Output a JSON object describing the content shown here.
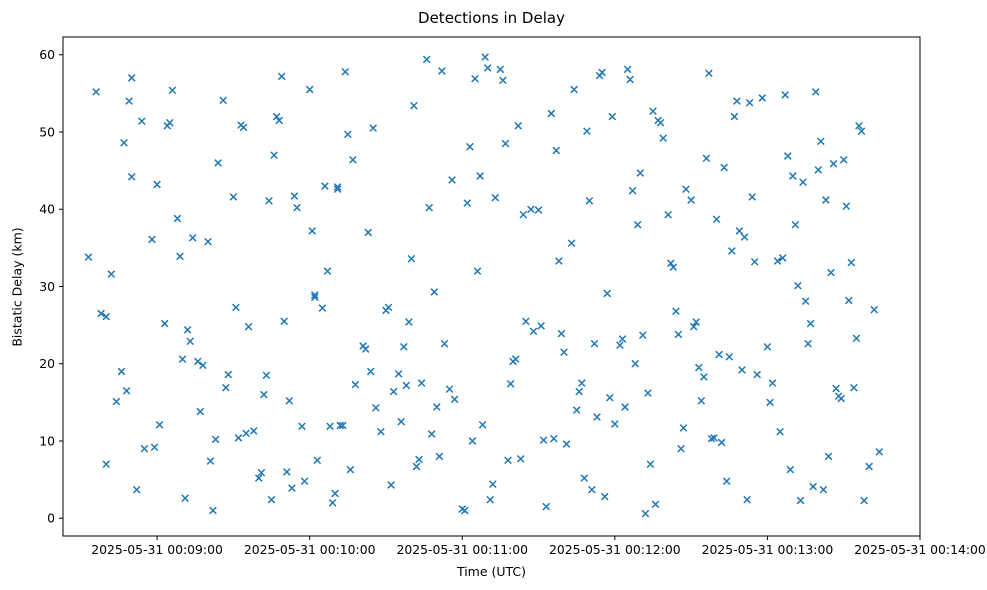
{
  "chart_data": {
    "type": "scatter",
    "title": "Detections in Delay",
    "xlabel": "Time (UTC)",
    "ylabel": "Bistatic Delay (km)",
    "marker": "x",
    "marker_color": "#1f77b4",
    "background_color": "#ffffff",
    "grid": false,
    "x_axis": {
      "type": "time_utc",
      "date": "2025-05-31",
      "min_time": "00:08:23",
      "max_time": "00:14:00",
      "ticks": [
        "00:09:00",
        "00:10:00",
        "00:11:00",
        "00:12:00",
        "00:13:00",
        "00:14:00"
      ],
      "tick_labels": [
        "2025-05-31 00:09:00",
        "2025-05-31 00:10:00",
        "2025-05-31 00:11:00",
        "2025-05-31 00:12:00",
        "2025-05-31 00:13:00",
        "2025-05-31 00:14:00"
      ]
    },
    "y_axis": {
      "min": -2.3,
      "max": 62.3,
      "ticks": [
        0,
        10,
        20,
        30,
        40,
        50,
        60
      ]
    },
    "points": [
      [
        "00:08:33",
        33.8
      ],
      [
        "00:08:36",
        55.2
      ],
      [
        "00:08:38",
        26.5
      ],
      [
        "00:08:40",
        7.0
      ],
      [
        "00:08:40",
        26.1
      ],
      [
        "00:08:42",
        31.6
      ],
      [
        "00:08:44",
        15.1
      ],
      [
        "00:08:46",
        19.0
      ],
      [
        "00:08:47",
        48.6
      ],
      [
        "00:08:48",
        16.5
      ],
      [
        "00:08:49",
        54.0
      ],
      [
        "00:08:50",
        57.0
      ],
      [
        "00:08:50",
        44.2
      ],
      [
        "00:08:52",
        3.7
      ],
      [
        "00:08:54",
        51.4
      ],
      [
        "00:08:55",
        9.0
      ],
      [
        "00:08:58",
        36.1
      ],
      [
        "00:08:59",
        9.2
      ],
      [
        "00:09:00",
        43.2
      ],
      [
        "00:09:01",
        12.1
      ],
      [
        "00:09:03",
        25.2
      ],
      [
        "00:09:04",
        50.8
      ],
      [
        "00:09:05",
        51.2
      ],
      [
        "00:09:06",
        55.4
      ],
      [
        "00:09:08",
        38.8
      ],
      [
        "00:09:09",
        33.9
      ],
      [
        "00:09:10",
        20.6
      ],
      [
        "00:09:11",
        2.6
      ],
      [
        "00:09:12",
        24.4
      ],
      [
        "00:09:13",
        22.9
      ],
      [
        "00:09:14",
        36.3
      ],
      [
        "00:09:16",
        20.3
      ],
      [
        "00:09:17",
        13.8
      ],
      [
        "00:09:18",
        19.8
      ],
      [
        "00:09:20",
        35.8
      ],
      [
        "00:09:21",
        7.4
      ],
      [
        "00:09:22",
        1.0
      ],
      [
        "00:09:23",
        10.2
      ],
      [
        "00:09:24",
        46.0
      ],
      [
        "00:09:26",
        54.1
      ],
      [
        "00:09:27",
        16.9
      ],
      [
        "00:09:28",
        18.6
      ],
      [
        "00:09:30",
        41.6
      ],
      [
        "00:09:31",
        27.3
      ],
      [
        "00:09:32",
        10.4
      ],
      [
        "00:09:33",
        50.9
      ],
      [
        "00:09:34",
        50.6
      ],
      [
        "00:09:35",
        11.0
      ],
      [
        "00:09:36",
        24.8
      ],
      [
        "00:09:38",
        11.3
      ],
      [
        "00:09:40",
        5.2
      ],
      [
        "00:09:41",
        5.9
      ],
      [
        "00:09:42",
        16.0
      ],
      [
        "00:09:43",
        18.5
      ],
      [
        "00:09:44",
        41.1
      ],
      [
        "00:09:45",
        2.4
      ],
      [
        "00:09:46",
        47.0
      ],
      [
        "00:09:47",
        52.0
      ],
      [
        "00:09:48",
        51.5
      ],
      [
        "00:09:49",
        57.2
      ],
      [
        "00:09:50",
        25.5
      ],
      [
        "00:09:51",
        6.0
      ],
      [
        "00:09:52",
        15.2
      ],
      [
        "00:09:53",
        3.9
      ],
      [
        "00:09:54",
        41.7
      ],
      [
        "00:09:55",
        40.2
      ],
      [
        "00:09:57",
        11.9
      ],
      [
        "00:09:58",
        4.8
      ],
      [
        "00:10:00",
        55.5
      ],
      [
        "00:10:01",
        37.2
      ],
      [
        "00:10:02",
        28.9
      ],
      [
        "00:10:02",
        28.6
      ],
      [
        "00:10:03",
        7.5
      ],
      [
        "00:10:05",
        27.2
      ],
      [
        "00:10:06",
        43.0
      ],
      [
        "00:10:07",
        32.0
      ],
      [
        "00:10:08",
        11.9
      ],
      [
        "00:10:09",
        2.0
      ],
      [
        "00:10:10",
        3.2
      ],
      [
        "00:10:11",
        42.9
      ],
      [
        "00:10:11",
        42.6
      ],
      [
        "00:10:12",
        12.0
      ],
      [
        "00:10:13",
        12.0
      ],
      [
        "00:10:14",
        57.8
      ],
      [
        "00:10:15",
        49.7
      ],
      [
        "00:10:16",
        6.3
      ],
      [
        "00:10:17",
        46.4
      ],
      [
        "00:10:18",
        17.3
      ],
      [
        "00:10:21",
        22.3
      ],
      [
        "00:10:22",
        21.9
      ],
      [
        "00:10:23",
        37.0
      ],
      [
        "00:10:24",
        19.0
      ],
      [
        "00:10:25",
        50.5
      ],
      [
        "00:10:26",
        14.3
      ],
      [
        "00:10:28",
        11.2
      ],
      [
        "00:10:30",
        26.9
      ],
      [
        "00:10:31",
        27.3
      ],
      [
        "00:10:32",
        4.3
      ],
      [
        "00:10:33",
        16.4
      ],
      [
        "00:10:35",
        18.7
      ],
      [
        "00:10:36",
        12.5
      ],
      [
        "00:10:37",
        22.2
      ],
      [
        "00:10:38",
        17.2
      ],
      [
        "00:10:39",
        25.4
      ],
      [
        "00:10:40",
        33.6
      ],
      [
        "00:10:41",
        53.4
      ],
      [
        "00:10:42",
        6.7
      ],
      [
        "00:10:43",
        7.6
      ],
      [
        "00:10:44",
        17.5
      ],
      [
        "00:10:46",
        59.4
      ],
      [
        "00:10:47",
        40.2
      ],
      [
        "00:10:48",
        10.9
      ],
      [
        "00:10:49",
        29.3
      ],
      [
        "00:10:50",
        14.4
      ],
      [
        "00:10:51",
        8.0
      ],
      [
        "00:10:52",
        57.9
      ],
      [
        "00:10:53",
        22.6
      ],
      [
        "00:10:55",
        16.7
      ],
      [
        "00:10:56",
        43.8
      ],
      [
        "00:10:57",
        15.4
      ],
      [
        "00:11:00",
        1.2
      ],
      [
        "00:11:01",
        1.0
      ],
      [
        "00:11:02",
        40.8
      ],
      [
        "00:11:03",
        48.1
      ],
      [
        "00:11:04",
        10.0
      ],
      [
        "00:11:05",
        56.9
      ],
      [
        "00:11:06",
        32.0
      ],
      [
        "00:11:07",
        44.3
      ],
      [
        "00:11:08",
        12.1
      ],
      [
        "00:11:09",
        59.7
      ],
      [
        "00:11:10",
        58.3
      ],
      [
        "00:11:11",
        2.4
      ],
      [
        "00:11:12",
        4.4
      ],
      [
        "00:11:13",
        41.5
      ],
      [
        "00:11:15",
        58.1
      ],
      [
        "00:11:16",
        56.7
      ],
      [
        "00:11:17",
        48.5
      ],
      [
        "00:11:18",
        7.5
      ],
      [
        "00:11:19",
        17.4
      ],
      [
        "00:11:20",
        20.3
      ],
      [
        "00:11:21",
        20.6
      ],
      [
        "00:11:22",
        50.8
      ],
      [
        "00:11:23",
        7.7
      ],
      [
        "00:11:24",
        39.3
      ],
      [
        "00:11:25",
        25.5
      ],
      [
        "00:11:27",
        40.0
      ],
      [
        "00:11:28",
        24.2
      ],
      [
        "00:11:30",
        39.9
      ],
      [
        "00:11:31",
        24.9
      ],
      [
        "00:11:32",
        10.1
      ],
      [
        "00:11:33",
        1.5
      ],
      [
        "00:11:35",
        52.4
      ],
      [
        "00:11:36",
        10.3
      ],
      [
        "00:11:37",
        47.6
      ],
      [
        "00:11:38",
        33.3
      ],
      [
        "00:11:39",
        23.9
      ],
      [
        "00:11:40",
        21.5
      ],
      [
        "00:11:41",
        9.6
      ],
      [
        "00:11:43",
        35.6
      ],
      [
        "00:11:44",
        55.5
      ],
      [
        "00:11:45",
        14.0
      ],
      [
        "00:11:46",
        16.4
      ],
      [
        "00:11:47",
        17.5
      ],
      [
        "00:11:48",
        5.2
      ],
      [
        "00:11:49",
        50.1
      ],
      [
        "00:11:50",
        41.1
      ],
      [
        "00:11:51",
        3.7
      ],
      [
        "00:11:52",
        22.6
      ],
      [
        "00:11:53",
        13.1
      ],
      [
        "00:11:54",
        57.3
      ],
      [
        "00:11:55",
        57.7
      ],
      [
        "00:11:56",
        2.8
      ],
      [
        "00:11:57",
        29.1
      ],
      [
        "00:11:58",
        15.6
      ],
      [
        "00:11:59",
        52.0
      ],
      [
        "00:12:00",
        12.2
      ],
      [
        "00:12:02",
        22.4
      ],
      [
        "00:12:03",
        23.2
      ],
      [
        "00:12:04",
        14.4
      ],
      [
        "00:12:05",
        58.1
      ],
      [
        "00:12:06",
        56.8
      ],
      [
        "00:12:07",
        42.4
      ],
      [
        "00:12:08",
        20.0
      ],
      [
        "00:12:09",
        38.0
      ],
      [
        "00:12:10",
        44.7
      ],
      [
        "00:12:11",
        23.7
      ],
      [
        "00:12:12",
        0.6
      ],
      [
        "00:12:13",
        16.2
      ],
      [
        "00:12:14",
        7.0
      ],
      [
        "00:12:15",
        52.7
      ],
      [
        "00:12:16",
        1.8
      ],
      [
        "00:12:17",
        51.5
      ],
      [
        "00:12:18",
        51.2
      ],
      [
        "00:12:19",
        49.2
      ],
      [
        "00:12:21",
        39.3
      ],
      [
        "00:12:22",
        33.0
      ],
      [
        "00:12:23",
        32.5
      ],
      [
        "00:12:24",
        26.8
      ],
      [
        "00:12:25",
        23.8
      ],
      [
        "00:12:26",
        9.0
      ],
      [
        "00:12:27",
        11.7
      ],
      [
        "00:12:28",
        42.6
      ],
      [
        "00:12:30",
        41.2
      ],
      [
        "00:12:31",
        24.8
      ],
      [
        "00:12:32",
        25.4
      ],
      [
        "00:12:33",
        19.5
      ],
      [
        "00:12:34",
        15.2
      ],
      [
        "00:12:35",
        18.3
      ],
      [
        "00:12:36",
        46.6
      ],
      [
        "00:12:37",
        57.6
      ],
      [
        "00:12:38",
        10.3
      ],
      [
        "00:12:39",
        10.4
      ],
      [
        "00:12:40",
        38.7
      ],
      [
        "00:12:41",
        21.2
      ],
      [
        "00:12:42",
        9.8
      ],
      [
        "00:12:43",
        45.4
      ],
      [
        "00:12:44",
        4.8
      ],
      [
        "00:12:45",
        20.9
      ],
      [
        "00:12:46",
        34.6
      ],
      [
        "00:12:47",
        52.0
      ],
      [
        "00:12:48",
        54.0
      ],
      [
        "00:12:49",
        37.2
      ],
      [
        "00:12:50",
        19.2
      ],
      [
        "00:12:51",
        36.4
      ],
      [
        "00:12:52",
        2.4
      ],
      [
        "00:12:53",
        53.8
      ],
      [
        "00:12:54",
        41.6
      ],
      [
        "00:12:55",
        33.2
      ],
      [
        "00:12:56",
        18.6
      ],
      [
        "00:12:58",
        54.4
      ],
      [
        "00:13:00",
        22.2
      ],
      [
        "00:13:01",
        15.0
      ],
      [
        "00:13:02",
        17.5
      ],
      [
        "00:13:04",
        33.3
      ],
      [
        "00:13:05",
        11.2
      ],
      [
        "00:13:06",
        33.7
      ],
      [
        "00:13:07",
        54.8
      ],
      [
        "00:13:08",
        46.9
      ],
      [
        "00:13:09",
        6.3
      ],
      [
        "00:13:10",
        44.3
      ],
      [
        "00:13:11",
        38.0
      ],
      [
        "00:13:12",
        30.1
      ],
      [
        "00:13:13",
        2.3
      ],
      [
        "00:13:14",
        43.5
      ],
      [
        "00:13:15",
        28.1
      ],
      [
        "00:13:16",
        22.6
      ],
      [
        "00:13:17",
        25.2
      ],
      [
        "00:13:18",
        4.1
      ],
      [
        "00:13:19",
        55.2
      ],
      [
        "00:13:20",
        45.1
      ],
      [
        "00:13:21",
        48.8
      ],
      [
        "00:13:22",
        3.7
      ],
      [
        "00:13:23",
        41.2
      ],
      [
        "00:13:24",
        8.0
      ],
      [
        "00:13:25",
        31.8
      ],
      [
        "00:13:26",
        45.9
      ],
      [
        "00:13:27",
        16.8
      ],
      [
        "00:13:28",
        15.8
      ],
      [
        "00:13:29",
        15.5
      ],
      [
        "00:13:30",
        46.4
      ],
      [
        "00:13:31",
        40.4
      ],
      [
        "00:13:32",
        28.2
      ],
      [
        "00:13:33",
        33.1
      ],
      [
        "00:13:34",
        16.9
      ],
      [
        "00:13:35",
        23.3
      ],
      [
        "00:13:36",
        50.8
      ],
      [
        "00:13:37",
        50.1
      ],
      [
        "00:13:38",
        2.3
      ],
      [
        "00:13:40",
        6.7
      ],
      [
        "00:13:42",
        27.0
      ],
      [
        "00:13:44",
        8.6
      ]
    ]
  }
}
